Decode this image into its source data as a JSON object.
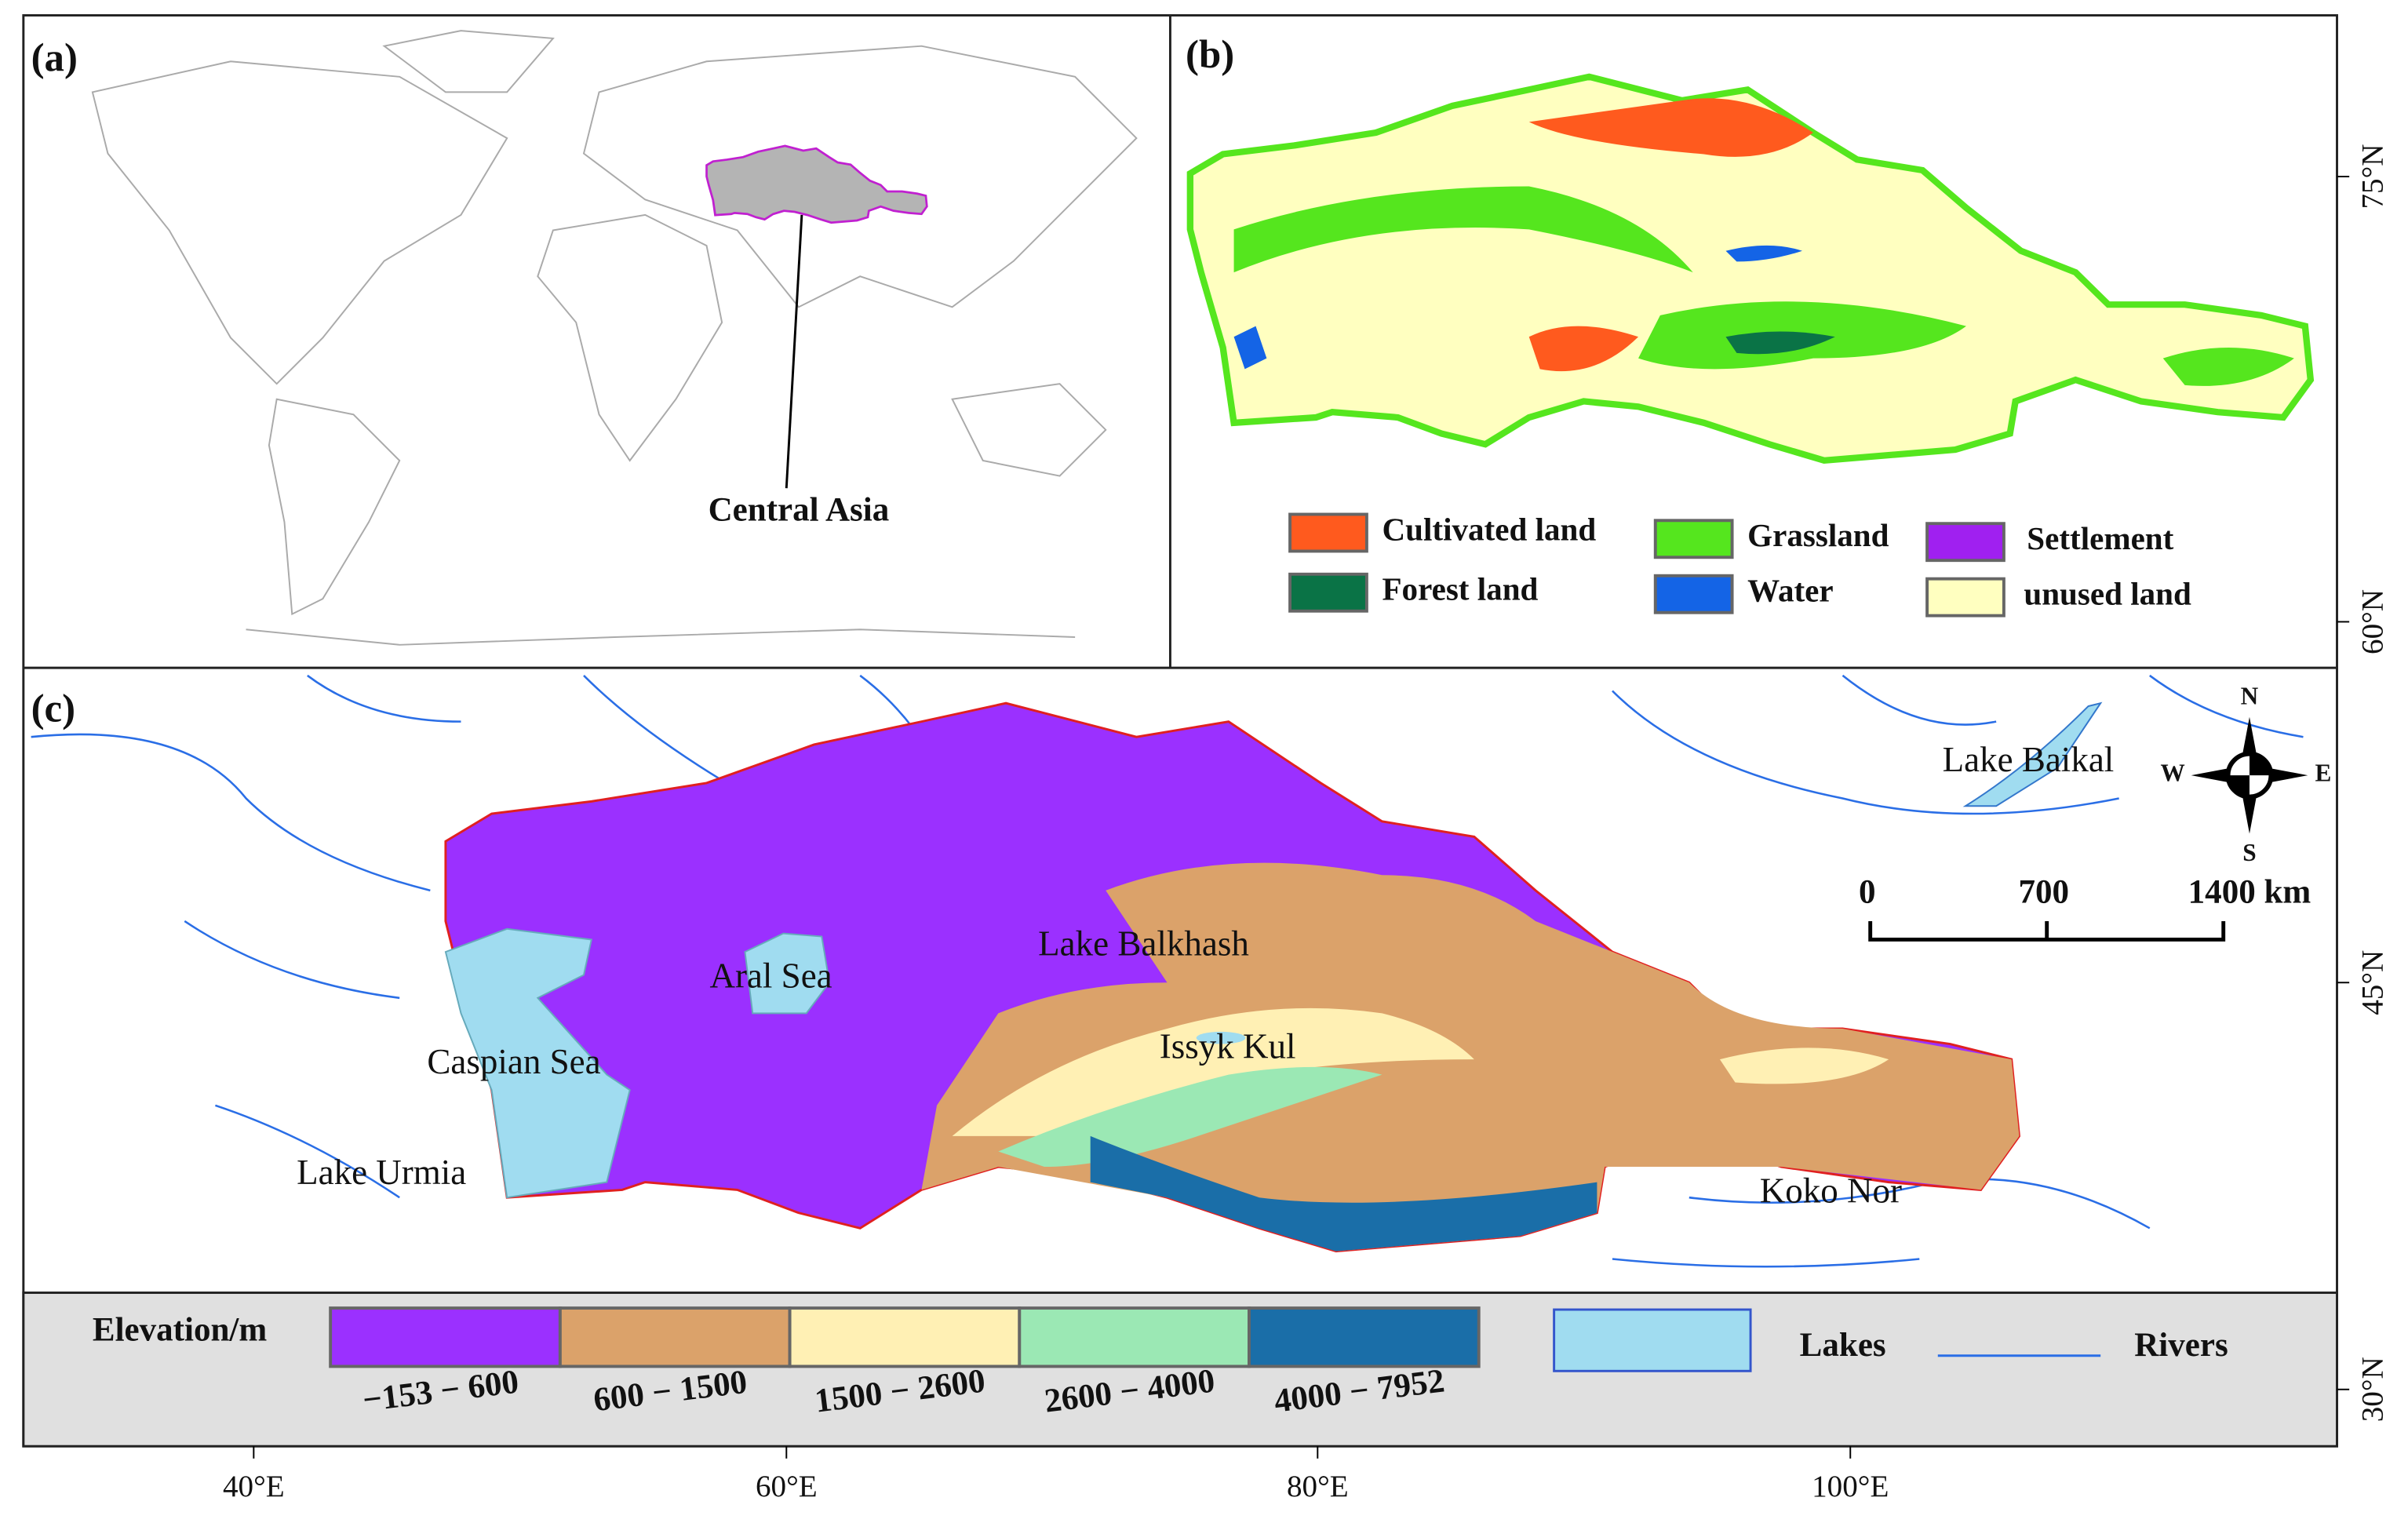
{
  "panels": {
    "a": {
      "label": "(a)",
      "annotation": "Central Asia"
    },
    "b": {
      "label": "(b)",
      "legend": [
        {
          "label": "Cultivated land",
          "color": "#ff5a1e"
        },
        {
          "label": "Grassland",
          "color": "#55e61e"
        },
        {
          "label": "Settlement",
          "color": "#a020f0"
        },
        {
          "label": "Forest land",
          "color": "#0a7346"
        },
        {
          "label": "Water",
          "color": "#1464e6"
        },
        {
          "label": "unused land",
          "color": "#ffffc0"
        }
      ]
    },
    "c": {
      "label": "(c)",
      "places": [
        "Lake Baikal",
        "Lake Balkhash",
        "Aral Sea",
        "Caspian Sea",
        "Issyk Kul",
        "Lake Urmia",
        "Koko Nor"
      ],
      "compass": {
        "n": "N",
        "s": "S",
        "w": "W",
        "e": "E"
      },
      "scale_bar": [
        "0",
        "700",
        "1400 km"
      ],
      "legend": {
        "title": "Elevation/m",
        "classes": [
          {
            "label": "−153 − 600",
            "color": "#9b30ff"
          },
          {
            "label": "600 − 1500",
            "color": "#dba26a"
          },
          {
            "label": "1500 − 2600",
            "color": "#fff0b4"
          },
          {
            "label": "2600 − 4000",
            "color": "#9be8b4"
          },
          {
            "label": "4000 − 7952",
            "color": "#1a6ea8"
          }
        ],
        "lakes": "Lakes",
        "lakes_color": "#a0dcf0",
        "rivers": "Rivers",
        "rivers_color": "#2a6ee6"
      }
    }
  },
  "axes": {
    "latitude": [
      "75°N",
      "60°N",
      "45°N",
      "30°N"
    ],
    "longitude": [
      "40°E",
      "60°E",
      "80°E",
      "100°E"
    ]
  }
}
